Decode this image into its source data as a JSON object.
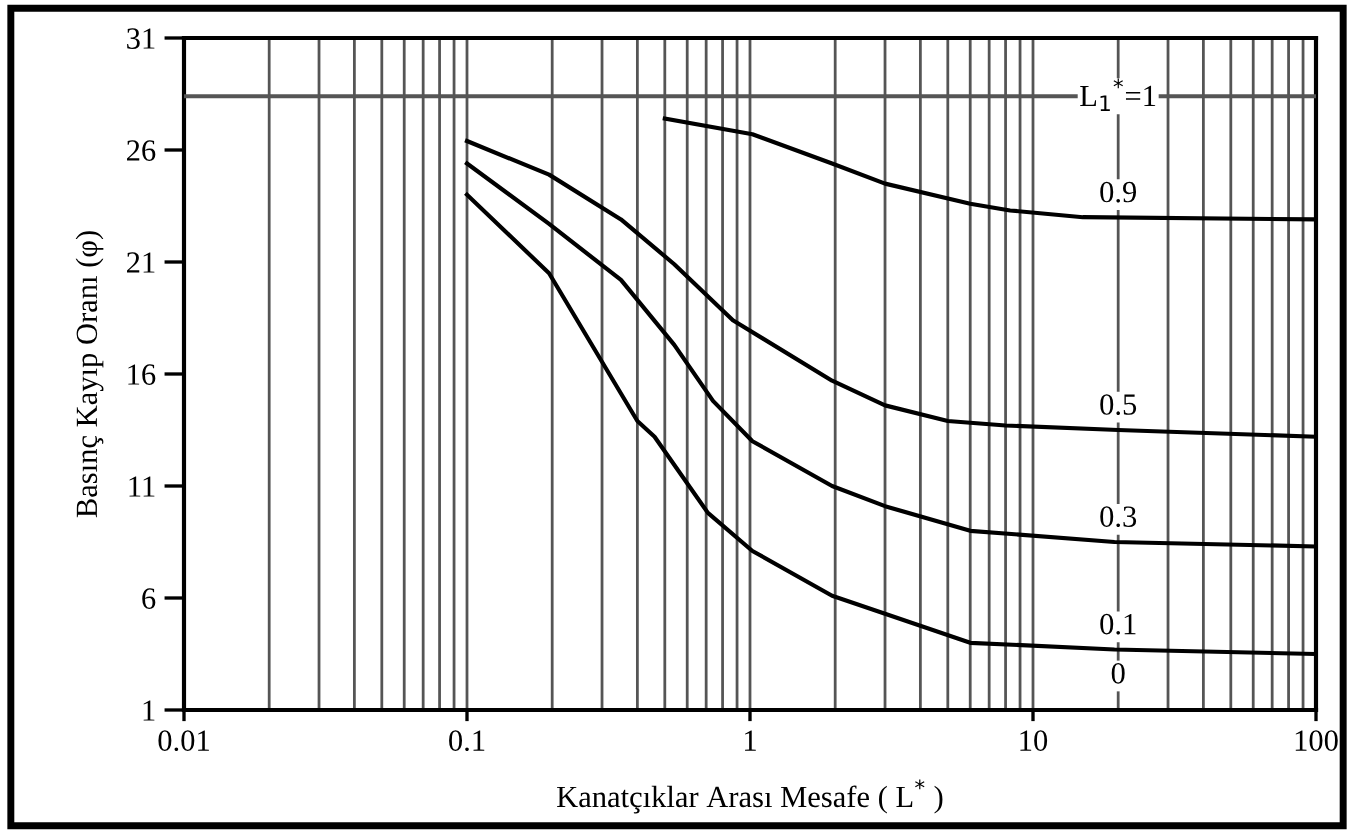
{
  "chart_data": {
    "type": "line",
    "xlabel": "Kanatçıklar Arası Mesafe ( L$^{*}$ )",
    "ylabel": "Basınç Kayıp Oranı (φ)",
    "log": "x",
    "xlim": [
      0.01,
      100
    ],
    "xticks": [
      0.01,
      0.1,
      1,
      10,
      100
    ],
    "ylim": [
      1,
      31
    ],
    "yticks": [
      1,
      6,
      11,
      16,
      21,
      26,
      31
    ],
    "grid": "x",
    "legend": false,
    "marker": "none",
    "line_style": "solid",
    "annotations": [
      "0"
    ],
    "series": [
      {
        "name": "L$_{1}$$^{*}$=1",
        "color": "#555555",
        "x": [
          0.01,
          100
        ],
        "values": [
          28.4,
          28.4
        ]
      },
      {
        "name": "0.9",
        "color": "#000000",
        "x": [
          0.5,
          1.02,
          1.95,
          3.0,
          6.0,
          8.3,
          15,
          100
        ],
        "values": [
          27.4,
          26.7,
          25.4,
          24.5,
          23.6,
          23.3,
          23.0,
          22.9
        ]
      },
      {
        "name": "0.5",
        "color": "#000000",
        "x": [
          0.1,
          0.195,
          0.35,
          0.54,
          0.87,
          1.95,
          3.0,
          5.0,
          8.0,
          20,
          100
        ],
        "values": [
          26.4,
          24.9,
          22.9,
          20.9,
          18.4,
          15.7,
          14.6,
          13.9,
          13.7,
          13.5,
          13.2
        ]
      },
      {
        "name": "0.3",
        "color": "#000000",
        "x": [
          0.1,
          0.195,
          0.35,
          0.54,
          0.74,
          1.02,
          1.95,
          3.0,
          6.0,
          19.4,
          100
        ],
        "values": [
          25.4,
          22.7,
          20.2,
          17.3,
          14.8,
          13.0,
          11.0,
          10.1,
          9.0,
          8.5,
          8.3
        ]
      },
      {
        "name": "0.1",
        "color": "#000000",
        "x": [
          0.1,
          0.195,
          0.4,
          0.46,
          0.71,
          1.02,
          1.95,
          3.0,
          6.0,
          19.4,
          100
        ],
        "values": [
          24.0,
          20.5,
          13.9,
          13.2,
          9.8,
          8.1,
          6.1,
          5.3,
          4.0,
          3.7,
          3.5
        ]
      }
    ]
  }
}
